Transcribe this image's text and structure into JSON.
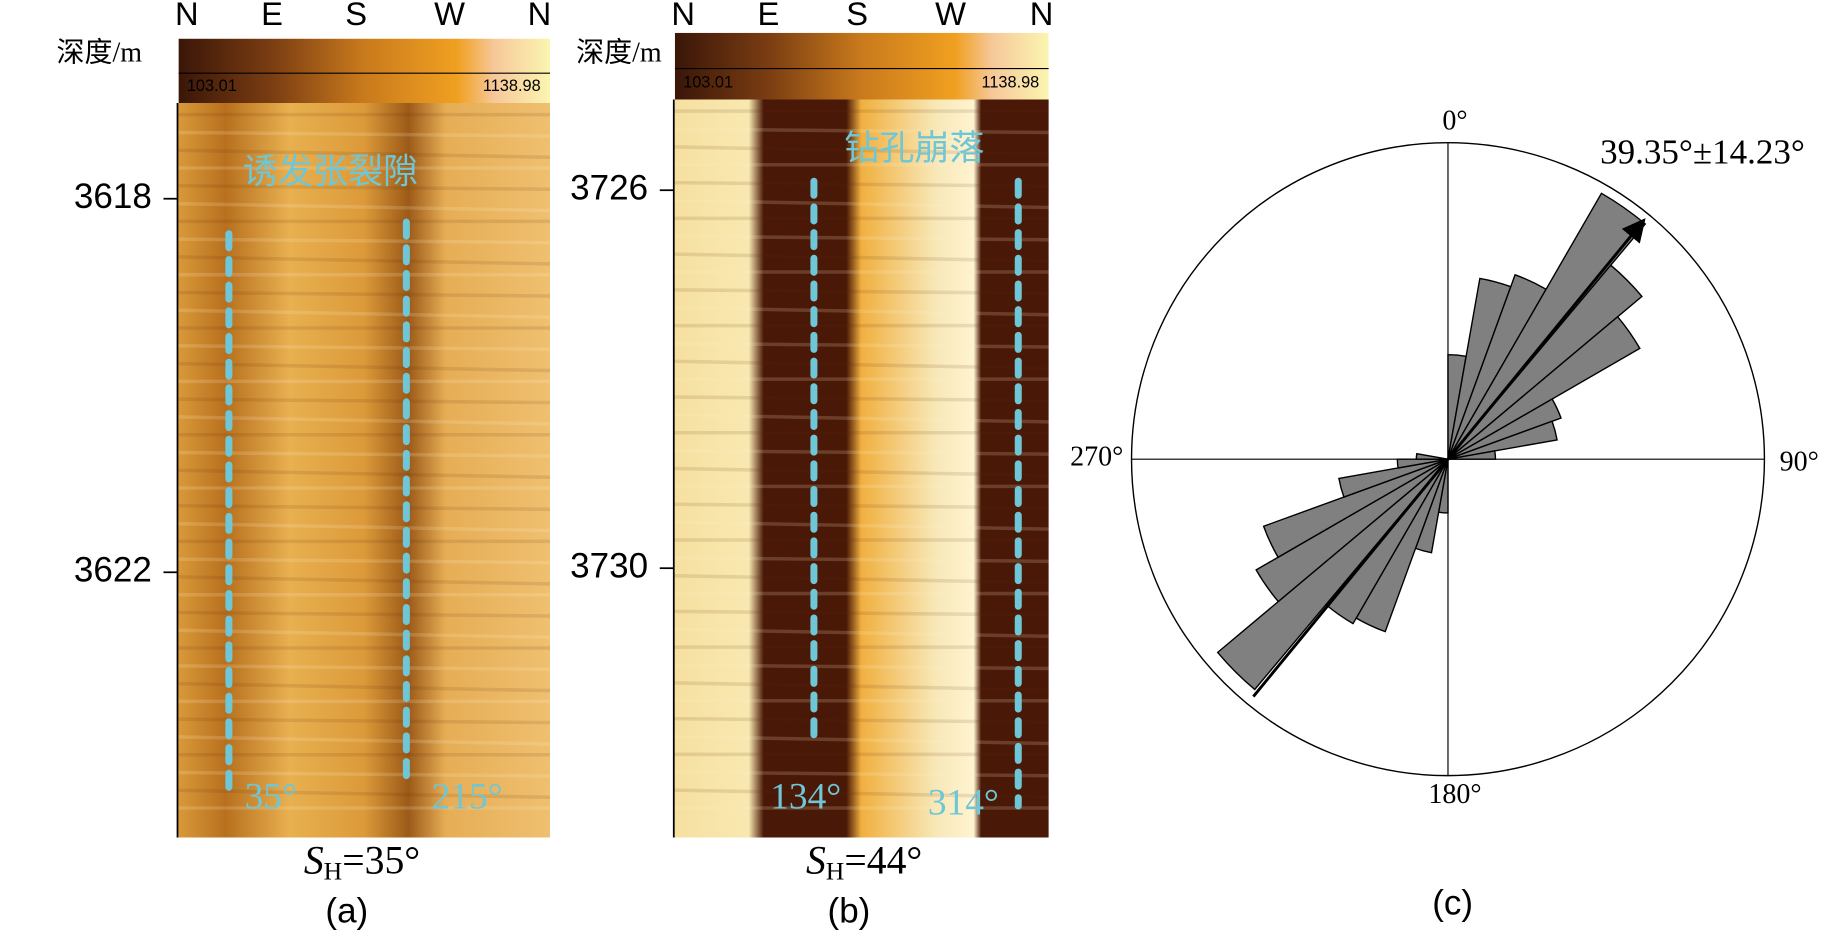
{
  "panels": [
    {
      "label": "(a)",
      "depth_label": "深度/m",
      "compass": [
        "N",
        "E",
        "S",
        "W",
        "N"
      ],
      "colorbar_min": "103.01",
      "colorbar_max": "1138.98",
      "depth_lim": [
        3616.975,
        3624.84
      ],
      "depth_ticks": [
        3618,
        3622
      ],
      "feature": "诱发张裂隙",
      "azimuths": [
        "35°",
        "215°"
      ],
      "caption": {
        "symbol": "S",
        "subscript": "H",
        "text": "=35°"
      }
    },
    {
      "label": "(b)",
      "depth_label": "深度/m",
      "compass": [
        "N",
        "E",
        "S",
        "W",
        "N"
      ],
      "colorbar_min": "103.01",
      "colorbar_max": "1138.98",
      "depth_lim": [
        3725.04,
        3732.85
      ],
      "depth_ticks": [
        3726,
        3730
      ],
      "feature": "钻孔崩落",
      "azimuths": [
        "134°",
        "314°"
      ],
      "caption": {
        "symbol": "S",
        "subscript": "H",
        "text": "=44°"
      }
    }
  ],
  "chart_data": {
    "type": "rose",
    "label": "(c)",
    "color": "#808080",
    "direction_labels": [
      "0°",
      "90°",
      "180°",
      "270°"
    ],
    "annotation": "39.35°±14.23°",
    "mean_direction": 39.35,
    "bin_width": 10,
    "rlim": [
      0,
      100
    ],
    "bins": [
      0,
      10,
      20,
      30,
      40,
      50,
      60,
      70,
      80,
      180,
      190,
      200,
      210,
      220,
      230,
      240,
      250,
      260,
      270
    ],
    "values": [
      33,
      58,
      62,
      97,
      80,
      70,
      38,
      35,
      15,
      17,
      30,
      58,
      60,
      95,
      70,
      62,
      35,
      16,
      10
    ]
  }
}
